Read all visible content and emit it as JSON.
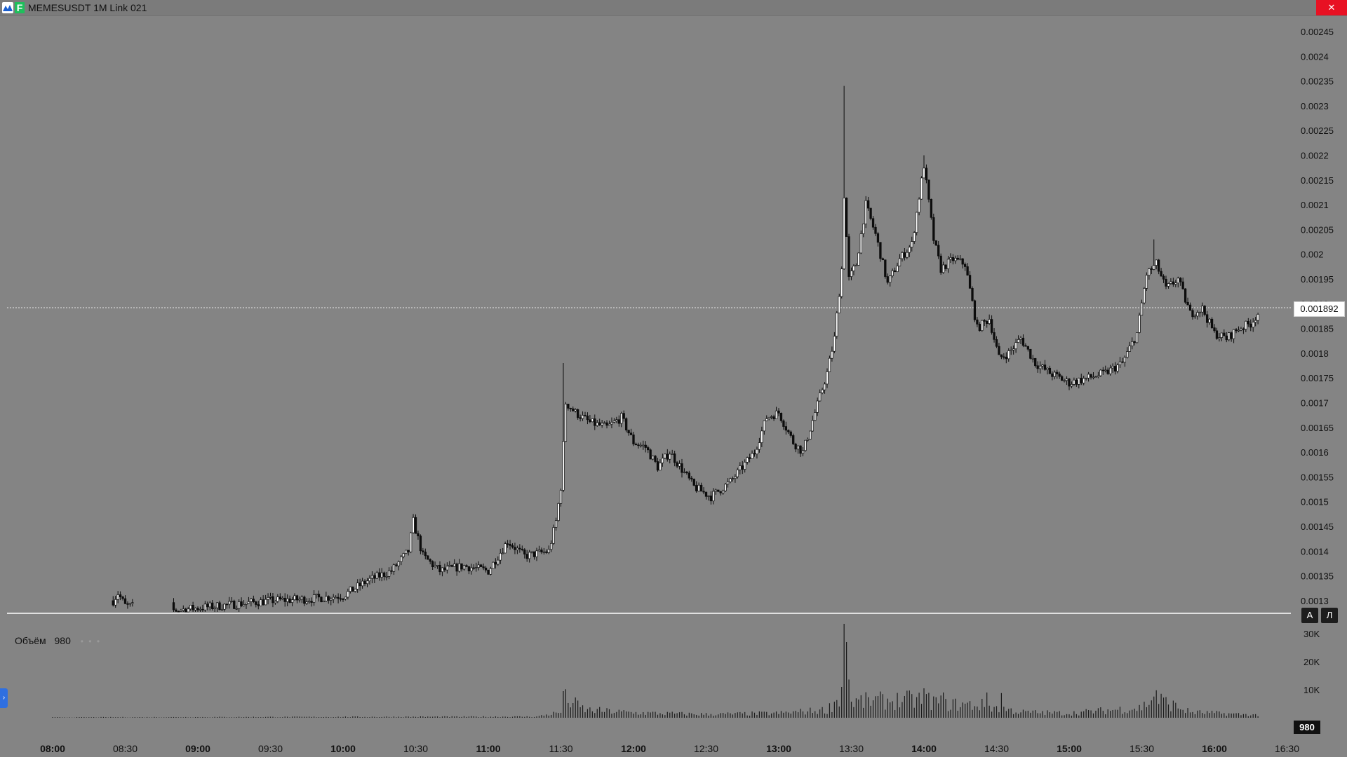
{
  "window": {
    "title": "MEMESUSDT  1M  Link 021",
    "close_label": "✕",
    "badge_letter": "F"
  },
  "chart": {
    "current_price_label": "0.001892",
    "y_ticks": [
      "0.00245",
      "0.0024",
      "0.00235",
      "0.0023",
      "0.00225",
      "0.0022",
      "0.00215",
      "0.0021",
      "0.00205",
      "0.002",
      "0.00195",
      "0.0019",
      "0.00185",
      "0.0018",
      "0.00175",
      "0.0017",
      "0.00165",
      "0.0016",
      "0.00155",
      "0.0015",
      "0.00145",
      "0.0014",
      "0.00135",
      "0.0013"
    ],
    "x_ticks": [
      {
        "label": "08:00",
        "bold": true
      },
      {
        "label": "08:30",
        "bold": false
      },
      {
        "label": "09:00",
        "bold": true
      },
      {
        "label": "09:30",
        "bold": false
      },
      {
        "label": "10:00",
        "bold": true
      },
      {
        "label": "10:30",
        "bold": false
      },
      {
        "label": "11:00",
        "bold": true
      },
      {
        "label": "11:30",
        "bold": false
      },
      {
        "label": "12:00",
        "bold": true
      },
      {
        "label": "12:30",
        "bold": false
      },
      {
        "label": "13:00",
        "bold": true
      },
      {
        "label": "13:30",
        "bold": false
      },
      {
        "label": "14:00",
        "bold": true
      },
      {
        "label": "14:30",
        "bold": false
      },
      {
        "label": "15:00",
        "bold": true
      },
      {
        "label": "15:30",
        "bold": false
      },
      {
        "label": "16:00",
        "bold": true
      },
      {
        "label": "16:30",
        "bold": false
      }
    ],
    "scale_buttons": {
      "auto": "A",
      "log": "Л"
    }
  },
  "volume": {
    "legend_label": "Объём",
    "legend_value": "980",
    "legend_dots": "• • •",
    "y_ticks": [
      "30K",
      "20K",
      "10K"
    ],
    "current_value_label": "980"
  },
  "side_tab_label": "›",
  "colors": {
    "background": "#848484",
    "candle": "#0d0d0d",
    "close_button": "#e81123",
    "badge": "#1fbf5c",
    "side_tab": "#2f6fe0"
  },
  "chart_data": {
    "type": "candlestick",
    "symbol": "MEMESUSDT",
    "interval": "1M",
    "ylim": [
      0.00128,
      0.00248
    ],
    "current_price": 0.001892,
    "price_path": [
      {
        "t": "08:25",
        "p": 0.0013
      },
      {
        "t": "08:27",
        "p": 0.001315
      },
      {
        "t": "08:30",
        "p": 0.00129
      },
      {
        "t": "08:50",
        "p": 0.00128
      },
      {
        "t": "09:00",
        "p": 0.001285
      },
      {
        "t": "09:30",
        "p": 0.0013
      },
      {
        "t": "09:45",
        "p": 0.001303
      },
      {
        "t": "10:00",
        "p": 0.00131
      },
      {
        "t": "10:10",
        "p": 0.00134
      },
      {
        "t": "10:20",
        "p": 0.00136
      },
      {
        "t": "10:27",
        "p": 0.0014
      },
      {
        "t": "10:29",
        "p": 0.00146
      },
      {
        "t": "10:33",
        "p": 0.00139
      },
      {
        "t": "10:40",
        "p": 0.00136
      },
      {
        "t": "10:50",
        "p": 0.00137
      },
      {
        "t": "11:00",
        "p": 0.00136
      },
      {
        "t": "11:08",
        "p": 0.00142
      },
      {
        "t": "11:15",
        "p": 0.00139
      },
      {
        "t": "11:25",
        "p": 0.0014
      },
      {
        "t": "11:28",
        "p": 0.00146
      },
      {
        "t": "11:30",
        "p": 0.00153
      },
      {
        "t": "11:32",
        "p": 0.0017
      },
      {
        "t": "11:36",
        "p": 0.00168
      },
      {
        "t": "11:42",
        "p": 0.00166
      },
      {
        "t": "11:49",
        "p": 0.00165
      },
      {
        "t": "11:55",
        "p": 0.00167
      },
      {
        "t": "12:00",
        "p": 0.00162
      },
      {
        "t": "12:05",
        "p": 0.00161
      },
      {
        "t": "12:10",
        "p": 0.00157
      },
      {
        "t": "12:15",
        "p": 0.0016
      },
      {
        "t": "12:25",
        "p": 0.00153
      },
      {
        "t": "12:32",
        "p": 0.00151
      },
      {
        "t": "12:40",
        "p": 0.00154
      },
      {
        "t": "12:50",
        "p": 0.0016
      },
      {
        "t": "12:55",
        "p": 0.00167
      },
      {
        "t": "13:00",
        "p": 0.00168
      },
      {
        "t": "13:06",
        "p": 0.00162
      },
      {
        "t": "13:10",
        "p": 0.0016
      },
      {
        "t": "13:15",
        "p": 0.00168
      },
      {
        "t": "13:20",
        "p": 0.00176
      },
      {
        "t": "13:23",
        "p": 0.00183
      },
      {
        "t": "13:26",
        "p": 0.00197
      },
      {
        "t": "13:27",
        "p": 0.00212
      },
      {
        "t": "13:29",
        "p": 0.00195
      },
      {
        "t": "13:32",
        "p": 0.00198
      },
      {
        "t": "13:36",
        "p": 0.0021
      },
      {
        "t": "13:40",
        "p": 0.00204
      },
      {
        "t": "13:45",
        "p": 0.00194
      },
      {
        "t": "13:50",
        "p": 0.00199
      },
      {
        "t": "13:55",
        "p": 0.00202
      },
      {
        "t": "14:00",
        "p": 0.00218
      },
      {
        "t": "14:04",
        "p": 0.00203
      },
      {
        "t": "14:07",
        "p": 0.00197
      },
      {
        "t": "14:12",
        "p": 0.00199
      },
      {
        "t": "14:17",
        "p": 0.00198
      },
      {
        "t": "14:22",
        "p": 0.00185
      },
      {
        "t": "14:27",
        "p": 0.00187
      },
      {
        "t": "14:31",
        "p": 0.00179
      },
      {
        "t": "14:35",
        "p": 0.0018
      },
      {
        "t": "14:40",
        "p": 0.00183
      },
      {
        "t": "14:46",
        "p": 0.00178
      },
      {
        "t": "14:52",
        "p": 0.00176
      },
      {
        "t": "15:00",
        "p": 0.00174
      },
      {
        "t": "15:08",
        "p": 0.00175
      },
      {
        "t": "15:15",
        "p": 0.00176
      },
      {
        "t": "15:22",
        "p": 0.00178
      },
      {
        "t": "15:28",
        "p": 0.00184
      },
      {
        "t": "15:32",
        "p": 0.00196
      },
      {
        "t": "15:36",
        "p": 0.00198
      },
      {
        "t": "15:40",
        "p": 0.00193
      },
      {
        "t": "15:45",
        "p": 0.00195
      },
      {
        "t": "15:50",
        "p": 0.00188
      },
      {
        "t": "15:55",
        "p": 0.00189
      },
      {
        "t": "16:00",
        "p": 0.00184
      },
      {
        "t": "16:05",
        "p": 0.00183
      },
      {
        "t": "16:10",
        "p": 0.00185
      },
      {
        "t": "16:15",
        "p": 0.00186
      },
      {
        "t": "16:18",
        "p": 0.00188
      }
    ],
    "spikes": [
      {
        "t": "11:31",
        "high": 0.00178
      },
      {
        "t": "13:27",
        "high": 0.00234
      },
      {
        "t": "14:00",
        "high": 0.0022
      },
      {
        "t": "15:35",
        "high": 0.00203
      }
    ],
    "volume": {
      "ylim": [
        0,
        35000
      ],
      "path": [
        {
          "t": "08:00",
          "v": 200
        },
        {
          "t": "11:20",
          "v": 500
        },
        {
          "t": "11:30",
          "v": 2500
        },
        {
          "t": "11:31",
          "v": 9000
        },
        {
          "t": "11:40",
          "v": 3500
        },
        {
          "t": "12:00",
          "v": 2200
        },
        {
          "t": "12:30",
          "v": 1500
        },
        {
          "t": "13:00",
          "v": 2000
        },
        {
          "t": "13:20",
          "v": 3500
        },
        {
          "t": "13:25",
          "v": 9000
        },
        {
          "t": "13:27",
          "v": 33000
        },
        {
          "t": "13:30",
          "v": 7000
        },
        {
          "t": "13:40",
          "v": 7500
        },
        {
          "t": "14:00",
          "v": 8000
        },
        {
          "t": "14:10",
          "v": 6000
        },
        {
          "t": "14:25",
          "v": 5500
        },
        {
          "t": "14:40",
          "v": 2500
        },
        {
          "t": "15:00",
          "v": 2000
        },
        {
          "t": "15:30",
          "v": 4500
        },
        {
          "t": "15:35",
          "v": 9000
        },
        {
          "t": "15:50",
          "v": 2500
        },
        {
          "t": "16:18",
          "v": 1200
        }
      ],
      "tall_bars": [
        {
          "t": "11:31",
          "v": 9500
        },
        {
          "t": "13:26",
          "v": 11000
        },
        {
          "t": "13:27",
          "v": 33500
        },
        {
          "t": "13:28",
          "v": 27000
        },
        {
          "t": "14:00",
          "v": 10500
        },
        {
          "t": "14:08",
          "v": 9000
        },
        {
          "t": "14:26",
          "v": 9000
        },
        {
          "t": "14:32",
          "v": 8800
        },
        {
          "t": "15:36",
          "v": 9800
        }
      ]
    }
  }
}
